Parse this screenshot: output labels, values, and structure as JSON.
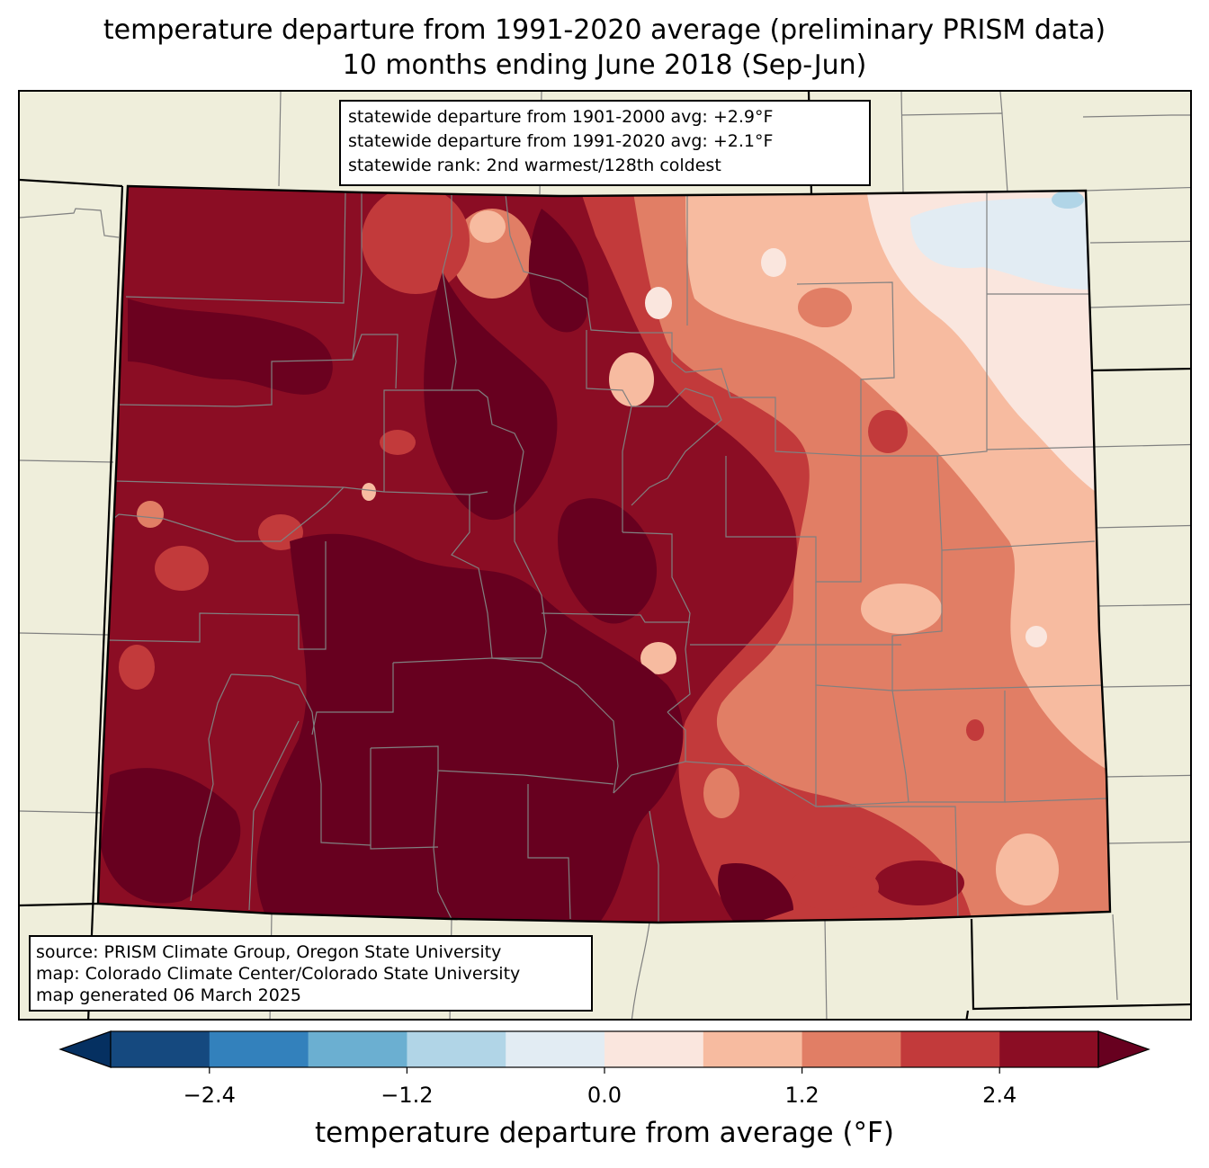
{
  "title": {
    "line1": "temperature departure from 1991-2020 average (preliminary PRISM data)",
    "line2": "10 months ending June 2018 (Sep-Jun)"
  },
  "stats": {
    "line1": "statewide departure from 1901-2000 avg: +2.9°F",
    "line2": "statewide departure from 1991-2020 avg: +2.1°F",
    "line3": "statewide rank: 2nd warmest/128th coldest"
  },
  "credits": {
    "line1": "source: PRISM Climate Group, Oregon State University",
    "line2": "map: Colorado Climate Center/Colorado State University",
    "line3": "map generated 06 March 2025"
  },
  "colorbar": {
    "label": "temperature departure from average (°F)",
    "ticks": [
      "−2.4",
      "−1.2",
      "0.0",
      "1.2",
      "2.4"
    ],
    "tick_values": [
      -2.4,
      -1.2,
      0.0,
      1.2,
      2.4
    ],
    "range": [
      -3.0,
      3.0
    ],
    "step": 0.6,
    "colors": [
      "#15497f",
      "#3381bc",
      "#6bafd1",
      "#b1d5e7",
      "#e2ecf3",
      "#fae6de",
      "#f7bba0",
      "#e17e65",
      "#c23a3b",
      "#8b0d24"
    ],
    "under_color": "#053061",
    "over_color": "#67001f"
  },
  "map_colors": {
    "land": "#efeedb",
    "state_border": "#000000",
    "county_border": "#808080"
  }
}
